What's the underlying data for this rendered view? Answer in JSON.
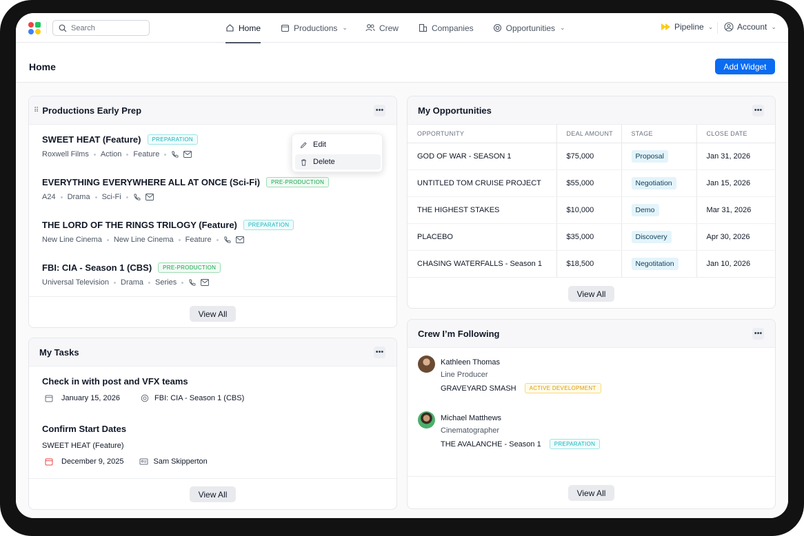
{
  "nav": {
    "search_placeholder": "Search",
    "items": [
      {
        "label": "Home",
        "active": true
      },
      {
        "label": "Productions"
      },
      {
        "label": "Crew"
      },
      {
        "label": "Companies"
      },
      {
        "label": "Opportunities"
      }
    ],
    "pipeline": "Pipeline",
    "account": "Account"
  },
  "page": {
    "title": "Home",
    "add_widget": "Add Widget"
  },
  "productions": {
    "title": "Productions Early Prep",
    "items": [
      {
        "title": "SWEET HEAT (Feature)",
        "status": "PREPARATION",
        "meta": [
          "Roxwell Films",
          "Action",
          "Feature"
        ]
      },
      {
        "title": "EVERYTHING EVERYWHERE ALL AT ONCE (Sci-Fi)",
        "status": "PRE-PRODUCTION",
        "meta": [
          "A24",
          "Drama",
          "Sci-Fi"
        ]
      },
      {
        "title": "THE LORD OF THE RINGS TRILOGY (Feature)",
        "status": "PREPARATION",
        "meta": [
          "New Line Cinema",
          "New Line Cinema",
          "Feature"
        ]
      },
      {
        "title": "FBI: CIA - Season 1 (CBS)",
        "status": "PRE-PRODUCTION",
        "meta": [
          "Universal Television",
          "Drama",
          "Series"
        ]
      }
    ],
    "view_all": "View All",
    "menu": {
      "edit": "Edit",
      "delete": "Delete"
    }
  },
  "tasks": {
    "title": "My Tasks",
    "items": [
      {
        "title": "Check in with post and VFX teams",
        "date": "January 15, 2026",
        "link": "FBI: CIA - Season 1 (CBS)"
      },
      {
        "title": "Confirm Start Dates",
        "subtitle": "SWEET HEAT (Feature)",
        "date": "December 9, 2025",
        "assignee": "Sam Skipperton"
      }
    ],
    "view_all": "View All"
  },
  "opportunities": {
    "title": "My Opportunities",
    "columns": [
      "OPPORTUNITY",
      "DEAL AMOUNT",
      "STAGE",
      "CLOSE DATE"
    ],
    "rows": [
      [
        "GOD OF WAR - SEASON 1",
        "$75,000",
        "Proposal",
        "Jan 31, 2026"
      ],
      [
        "UNTITLED TOM CRUISE PROJECT",
        "$55,000",
        "Negotiation",
        "Jan 15, 2026"
      ],
      [
        "THE HIGHEST STAKES",
        "$10,000",
        "Demo",
        "Mar 31, 2026"
      ],
      [
        "PLACEBO",
        "$35,000",
        "Discovery",
        "Apr 30, 2026"
      ],
      [
        "CHASING WATERFALLS - Season 1",
        "$18,500",
        "Negotitation",
        "Jan 10, 2026"
      ]
    ],
    "view_all": "View All"
  },
  "crew": {
    "title": "Crew I’m Following",
    "items": [
      {
        "name": "Kathleen Thomas",
        "role": "Line Producer",
        "project": "GRAVEYARD SMASH",
        "status": "ACTIVE DEVELOPMENT"
      },
      {
        "name": "Michael Matthews",
        "role": "Cinematographer",
        "project": "THE AVALANCHE - Season 1",
        "status": "PREPARATION"
      }
    ],
    "view_all": "View All"
  },
  "colors": {
    "primary": "#0b6bf1",
    "preparation": "#13b3bb",
    "pre_production": "#16a34a",
    "active_development": "#d99c05",
    "stage_bg": "#e3f4fb"
  }
}
